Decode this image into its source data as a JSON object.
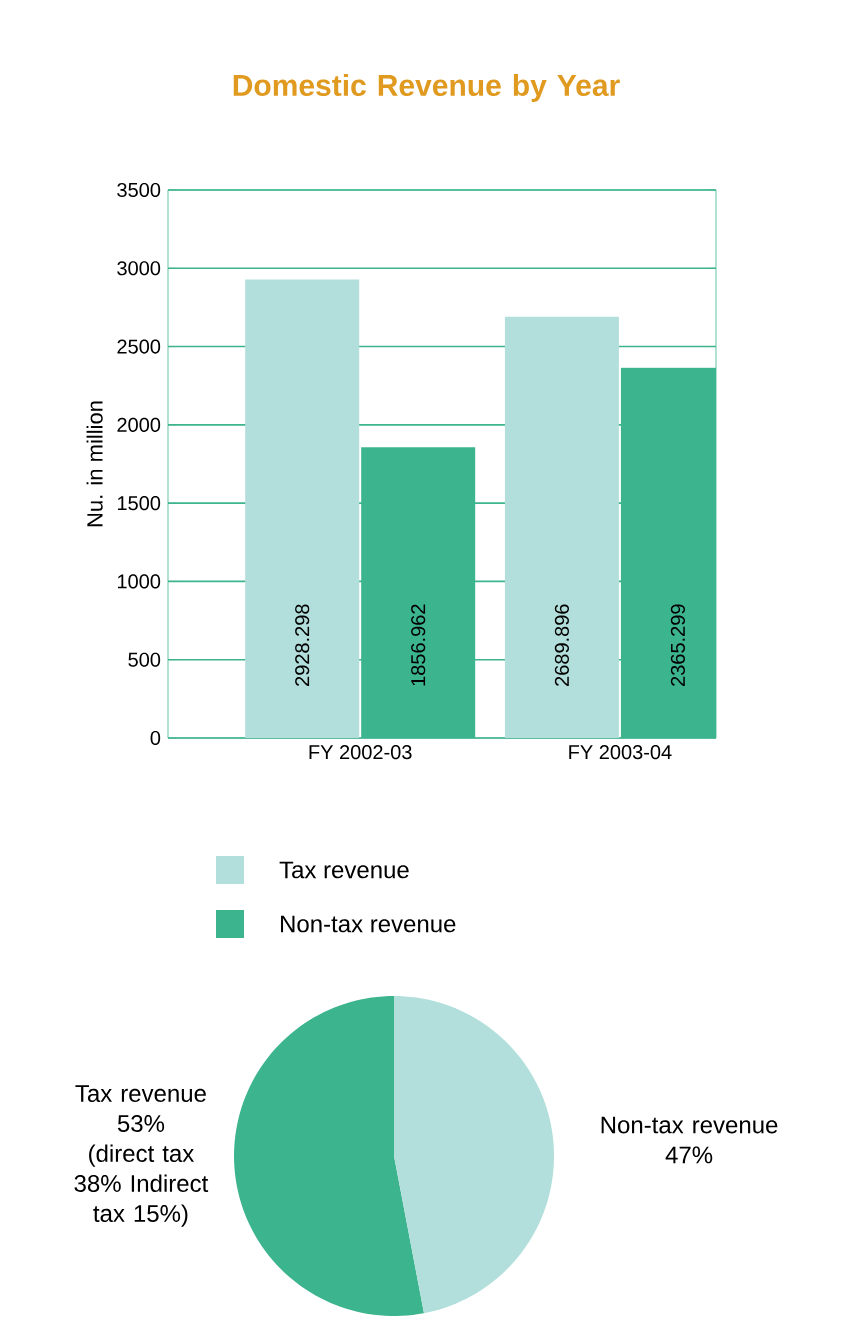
{
  "chart_data": [
    {
      "type": "bar",
      "title": "Domestic Revenue by Year",
      "ylabel": "Nu. in million",
      "categories": [
        "FY 2002-03",
        "FY 2003-04"
      ],
      "series": [
        {
          "name": "Tax revenue",
          "color": "#b2dfdb",
          "values": [
            2928.298,
            2689.896
          ]
        },
        {
          "name": "Non-tax revenue",
          "color": "#3cb48e",
          "values": [
            1856.962,
            2365.299
          ]
        }
      ],
      "ylim": [
        0,
        3500
      ],
      "yticks": [
        0,
        500,
        1000,
        1500,
        2000,
        2500,
        3000,
        3500
      ],
      "grid": "y",
      "legend": "bottom",
      "data_labels": true
    },
    {
      "type": "pie",
      "categories": [
        "Tax revenue",
        "Non-tax revenue"
      ],
      "values": [
        53,
        47
      ],
      "colors": [
        "#3cb48e",
        "#b2dfdb"
      ],
      "value_labels": [
        "53%",
        "47%"
      ],
      "annotations": [
        "(direct tax 38% Indirect tax 15%)"
      ]
    }
  ]
}
